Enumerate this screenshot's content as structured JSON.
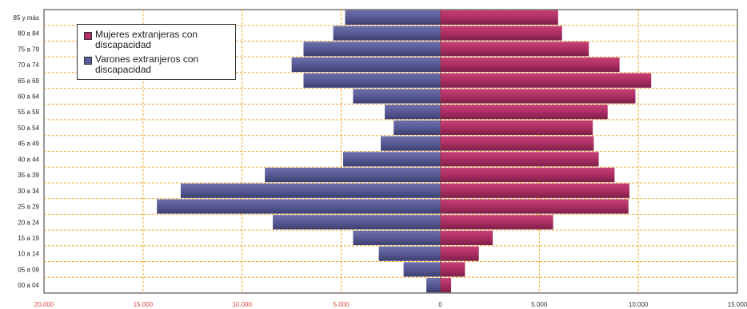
{
  "chart_data": {
    "type": "bar",
    "orientation": "horizontal",
    "categories": [
      "85 y más",
      "80 a 84",
      "75 a 79",
      "70 a 74",
      "65 a 69",
      "60 a 64",
      "55 a 59",
      "50 a 54",
      "45 a 49",
      "40 a 44",
      "35 a 39",
      "30 a 34",
      "25 a 29",
      "20 a 24",
      "15 a 19",
      "10 a 14",
      "05 a 09",
      "00 a 04"
    ],
    "series": [
      {
        "name": "Mujeres extranjeras con discapacidad",
        "color": "#b03066",
        "values": [
          5950,
          6150,
          7500,
          9050,
          10650,
          9850,
          8450,
          7700,
          7750,
          8000,
          8800,
          9550,
          9500,
          5700,
          2650,
          1950,
          1250,
          550
        ]
      },
      {
        "name": "Varones extranjeros con discapacidad",
        "color": "#5a5c98",
        "values": [
          4800,
          5400,
          6900,
          7500,
          6900,
          4400,
          2800,
          2350,
          3000,
          4900,
          8850,
          13100,
          14300,
          8450,
          4400,
          3100,
          1850,
          700
        ]
      }
    ],
    "x_tick_labels": [
      "20.000",
      "15.000",
      "10.000",
      "5.000",
      "0",
      "5.000",
      "10.000",
      "15.000"
    ],
    "xlim": [
      -20000,
      15000
    ],
    "grid": true,
    "legend_position": "top-left"
  }
}
